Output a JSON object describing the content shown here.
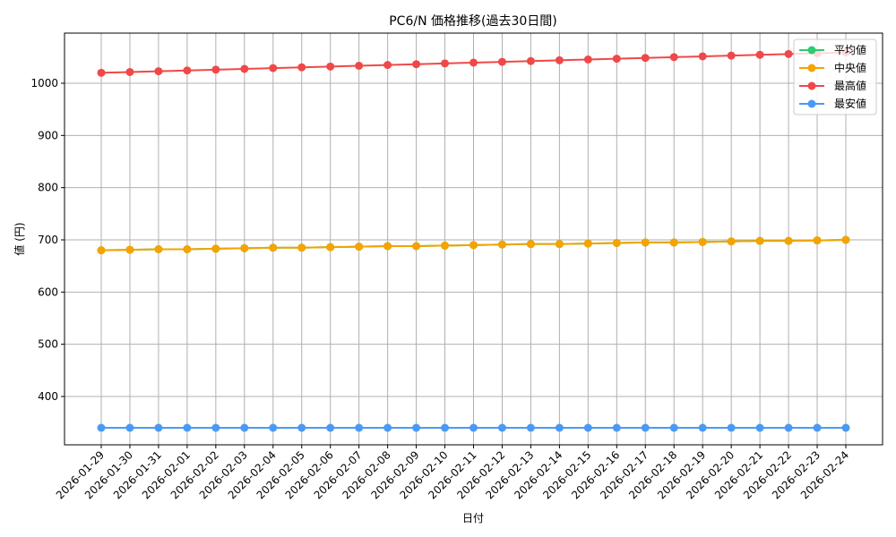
{
  "chart_data": {
    "type": "line",
    "title": "PC6/N 価格推移(過去30日間)",
    "xlabel": "日付",
    "ylabel": "値 (円)",
    "ylim": [
      300,
      1090
    ],
    "yticks": [
      400,
      500,
      600,
      700,
      800,
      900,
      1000
    ],
    "grid": true,
    "legend_position": "upper right",
    "categories": [
      "2026-01-29",
      "2026-01-30",
      "2026-01-31",
      "2026-02-01",
      "2026-02-02",
      "2026-02-03",
      "2026-02-04",
      "2026-02-05",
      "2026-02-06",
      "2026-02-07",
      "2026-02-08",
      "2026-02-09",
      "2026-02-10",
      "2026-02-11",
      "2026-02-12",
      "2026-02-13",
      "2026-02-14",
      "2026-02-15",
      "2026-02-16",
      "2026-02-17",
      "2026-02-18",
      "2026-02-19",
      "2026-02-20",
      "2026-02-21",
      "2026-02-22",
      "2026-02-23",
      "2026-02-24"
    ],
    "series": [
      {
        "name": "平均値",
        "color": "#2ecc71",
        "values": [
          680,
          681,
          682,
          682,
          683,
          684,
          685,
          685,
          686,
          687,
          688,
          688,
          689,
          690,
          691,
          692,
          692,
          693,
          694,
          695,
          695,
          696,
          697,
          698,
          698,
          699,
          700
        ]
      },
      {
        "name": "中央値",
        "color": "#f5a300",
        "values": [
          680,
          681,
          682,
          682,
          683,
          684,
          685,
          685,
          686,
          687,
          688,
          688,
          689,
          690,
          691,
          692,
          692,
          693,
          694,
          695,
          695,
          696,
          697,
          698,
          698,
          699,
          700
        ]
      },
      {
        "name": "最高値",
        "color": "#f04848",
        "values": [
          1020,
          1021.5,
          1023,
          1024.5,
          1026,
          1027.5,
          1029,
          1030.5,
          1032,
          1033.5,
          1035,
          1036.5,
          1038,
          1039.5,
          1041,
          1042.5,
          1044,
          1045.5,
          1047,
          1048.5,
          1050,
          1051.5,
          1053,
          1054.5,
          1056,
          1057.5,
          1059
        ]
      },
      {
        "name": "最安値",
        "color": "#4a9af5",
        "values": [
          340,
          340,
          340,
          340,
          340,
          340,
          340,
          340,
          340,
          340,
          340,
          340,
          340,
          340,
          340,
          340,
          340,
          340,
          340,
          340,
          340,
          340,
          340,
          340,
          340,
          340,
          340
        ]
      }
    ]
  }
}
